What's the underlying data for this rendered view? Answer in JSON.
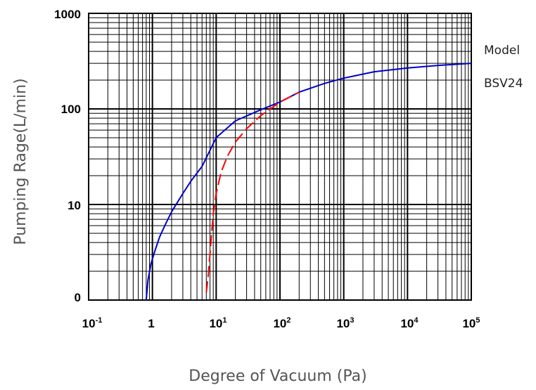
{
  "chart_data": {
    "type": "line",
    "xlabel": "Degree of Vacuum (Pa)",
    "ylabel": "Pumping Rage(L/min)",
    "x_scale": "log",
    "y_scale": "log",
    "xlim": [
      0.1,
      100000
    ],
    "ylim_ticks": [
      "0",
      "10",
      "100",
      "1000"
    ],
    "x_ticks": [
      {
        "base": "10",
        "exp": "-1"
      },
      {
        "base": "1",
        "exp": ""
      },
      {
        "base": "10",
        "exp": "1"
      },
      {
        "base": "10",
        "exp": "2"
      },
      {
        "base": "10",
        "exp": "3"
      },
      {
        "base": "10",
        "exp": "4"
      },
      {
        "base": "10",
        "exp": "5"
      }
    ],
    "legend": {
      "line1": "Model",
      "line2": "BSV24"
    },
    "grid": true,
    "series": [
      {
        "color": "#0000cc",
        "style": "solid",
        "points": [
          [
            0.8,
            1
          ],
          [
            0.85,
            1.6
          ],
          [
            0.95,
            2.4
          ],
          [
            1.1,
            3.3
          ],
          [
            1.3,
            4.6
          ],
          [
            1.6,
            6.2
          ],
          [
            2,
            8.4
          ],
          [
            3,
            13
          ],
          [
            4,
            17.5
          ],
          [
            6,
            25
          ],
          [
            10,
            50
          ],
          [
            20,
            75
          ],
          [
            50,
            98
          ],
          [
            100,
            118
          ],
          [
            200,
            150
          ],
          [
            500,
            185
          ],
          [
            1000,
            210
          ],
          [
            3000,
            245
          ],
          [
            10000,
            268
          ],
          [
            30000,
            285
          ],
          [
            100000,
            300
          ]
        ]
      },
      {
        "color": "#ff0000",
        "style": "dashed",
        "points": [
          [
            7,
            1.2
          ],
          [
            7.5,
            1.8
          ],
          [
            8,
            3
          ],
          [
            8.5,
            5
          ],
          [
            9,
            8
          ],
          [
            10,
            13
          ],
          [
            12,
            22
          ],
          [
            15,
            32
          ],
          [
            20,
            45
          ],
          [
            30,
            62
          ],
          [
            50,
            85
          ],
          [
            100,
            118
          ],
          [
            200,
            150
          ]
        ]
      }
    ]
  }
}
